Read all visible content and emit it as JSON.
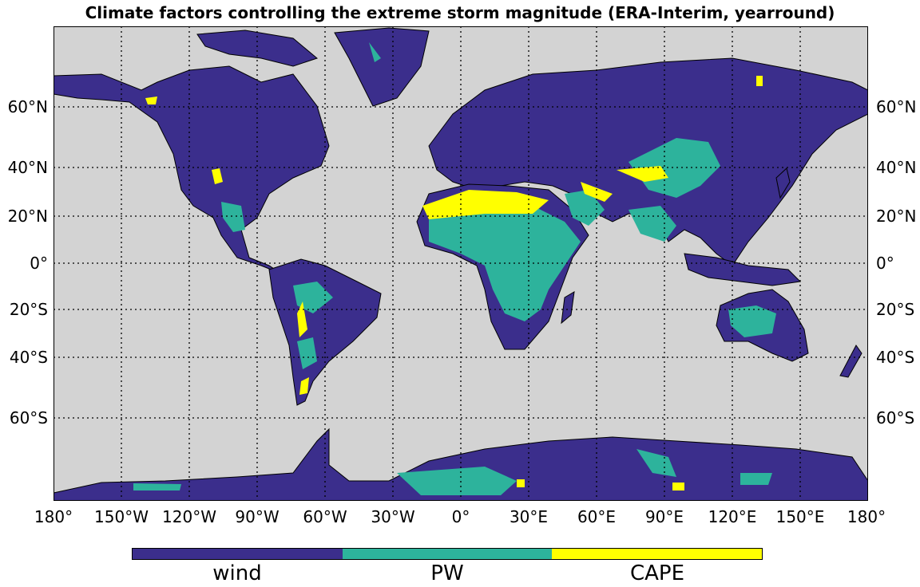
{
  "title": "Climate factors controlling the extreme storm magnitude (ERA-Interim, yearround)",
  "colors": {
    "ocean": "#d3d3d3",
    "wind": "#3b2e8c",
    "pw": "#2db39c",
    "cape": "#ffff00",
    "grid": "#000000"
  },
  "x_ticks": [
    "180°",
    "150°W",
    "120°W",
    "90°W",
    "60°W",
    "30°W",
    "0°",
    "30°E",
    "60°E",
    "90°E",
    "120°E",
    "150°E",
    "180°"
  ],
  "y_ticks_left": [
    "60°N",
    "40°N",
    "20°N",
    "0°",
    "20°S",
    "40°S",
    "60°S"
  ],
  "y_ticks_right": [
    "60°N",
    "40°N",
    "20°N",
    "0°",
    "20°S",
    "40°S",
    "60°S"
  ],
  "colorbar": {
    "labels": [
      "wind",
      "PW",
      "CAPE"
    ]
  }
}
